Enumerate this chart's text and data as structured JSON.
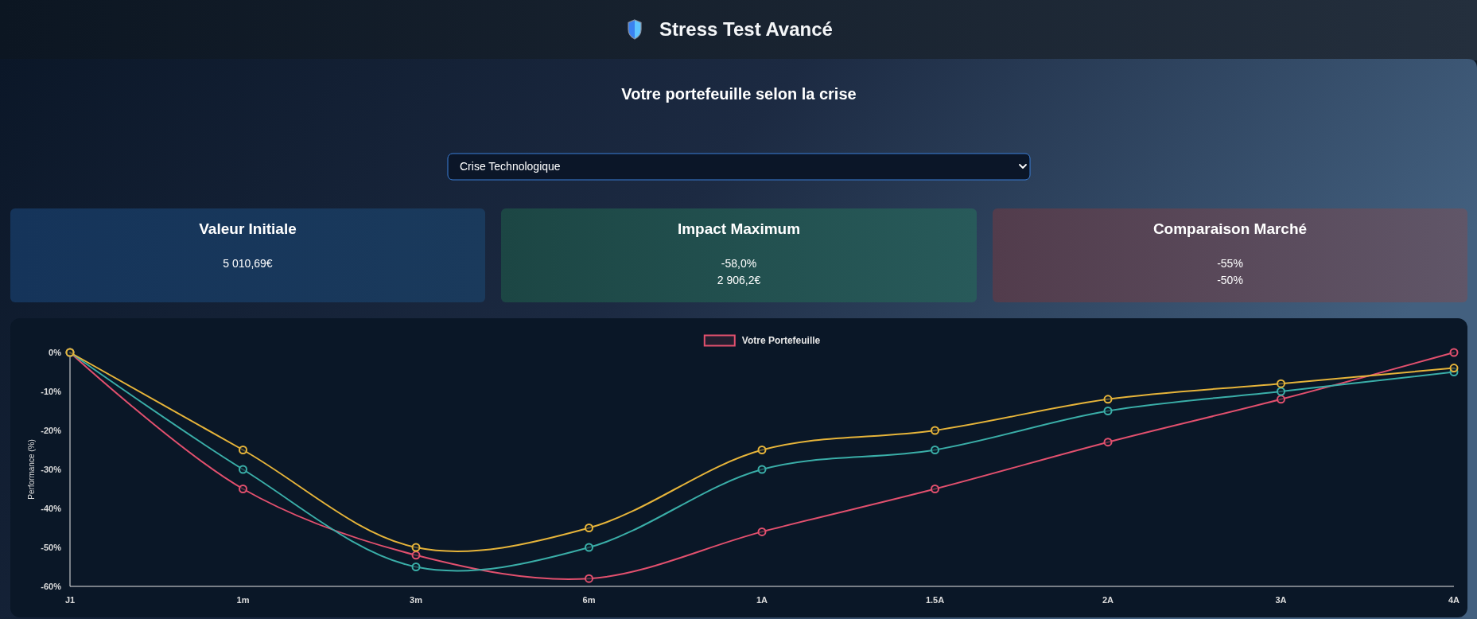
{
  "chart_data": [
    {
      "type": "other",
      "title": "Stress Test Avancé",
      "subtitle": "Votre portefeuille selon la crise",
      "annotations": [
        "Crise Technologique"
      ]
    },
    {
      "type": "other",
      "title": "Valeur Initiale",
      "annotations": [
        "5 010,69€"
      ]
    },
    {
      "type": "other",
      "title": "Impact Maximum",
      "annotations": [
        "-58,0%",
        "2 906,2€"
      ]
    },
    {
      "type": "other",
      "title": "Comparaison Marché",
      "annotations": [
        "-55%",
        "-50%"
      ]
    },
    {
      "type": "line",
      "categories": [
        "J1",
        "1m",
        "3m",
        "6m",
        "1A",
        "1.5A",
        "2A",
        "3A",
        "4A"
      ],
      "series": [
        {
          "name": "Votre Portefeuille",
          "color": "#e2506e",
          "values": [
            0,
            -35,
            -52,
            -58,
            -46,
            -35,
            -23,
            -12,
            0
          ]
        },
        {
          "color": "#3aaea8",
          "values": [
            0,
            -30,
            -55,
            -50,
            -30,
            -25,
            -15,
            -10,
            -5
          ]
        },
        {
          "color": "#e6b43a",
          "values": [
            0,
            -25,
            -50,
            -45,
            -25,
            -20,
            -12,
            -8,
            -4
          ]
        }
      ],
      "ylabel": "Performance (%)",
      "ylim": [
        -60,
        0
      ],
      "yticks": [
        {
          "value": 0,
          "label": "0%"
        },
        {
          "value": -10,
          "label": "-10%"
        },
        {
          "value": -20,
          "label": "-20%"
        },
        {
          "value": -30,
          "label": "-30%"
        },
        {
          "value": -40,
          "label": "-40%"
        },
        {
          "value": -50,
          "label": "-50%"
        },
        {
          "value": -60,
          "label": "-60%"
        }
      ],
      "legend": "top",
      "marker": "circle",
      "line_style": "solid"
    }
  ]
}
